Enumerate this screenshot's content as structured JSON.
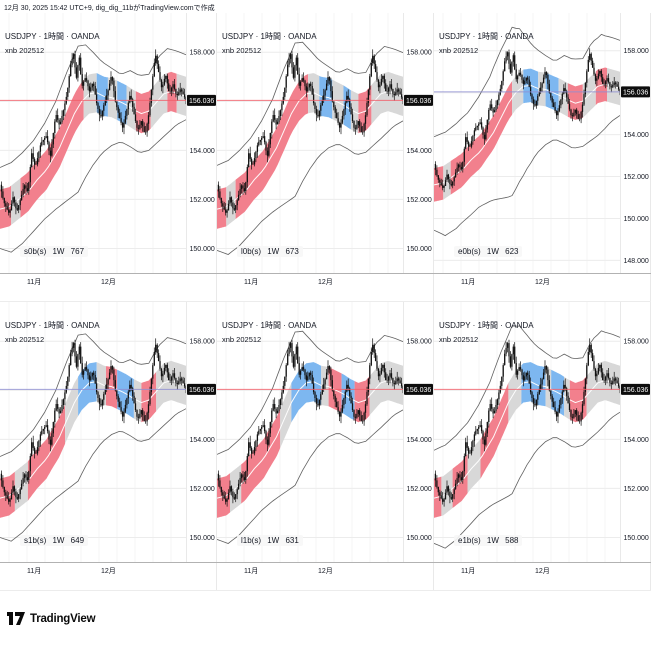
{
  "header": {
    "caption": "12月 30, 2025 15:42 UTC+9, dig_dig_11bがTradingView.comで作成"
  },
  "footer": {
    "brand": "TradingView"
  },
  "colors": {
    "background": "#ffffff",
    "text": "#131722",
    "grid_minor": "#f4f4f4",
    "grid_major": "#ececec",
    "axis_line": "#b2b2b2",
    "separator": "#e9e9e9",
    "candle": "#111111",
    "envelope": "#454545",
    "band_red": "#f2808d",
    "band_blue": "#7db7f0",
    "band_gray": "#d8d8d8",
    "band_center_line": "#ffffff",
    "price_line_red": "#f25f6a",
    "price_line_purple": "#8f8fd2",
    "badge_bg": "#0d0d0d",
    "badge_text": "#ffffff"
  },
  "chart_data": {
    "type": "candlestick-multi-panel",
    "symbol": "USDJPY · 1時間 · OANDA",
    "indicator": "xnb 202512",
    "last_price": "156.036",
    "x_ticks": [
      "11月",
      "12月"
    ],
    "band_halfwidth": 0.8,
    "price_path": [
      [
        0,
        152.6
      ],
      [
        0.02,
        151.9
      ],
      [
        0.05,
        151.4
      ],
      [
        0.07,
        152.1
      ],
      [
        0.09,
        151.5
      ],
      [
        0.11,
        152.0
      ],
      [
        0.13,
        152.6
      ],
      [
        0.15,
        152.3
      ],
      [
        0.17,
        153.9
      ],
      [
        0.19,
        153.3
      ],
      [
        0.22,
        154.3
      ],
      [
        0.25,
        154.6
      ],
      [
        0.27,
        153.7
      ],
      [
        0.3,
        155.5
      ],
      [
        0.32,
        155.0
      ],
      [
        0.34,
        155.6
      ],
      [
        0.36,
        156.3
      ],
      [
        0.38,
        157.5
      ],
      [
        0.395,
        157.95
      ],
      [
        0.41,
        156.9
      ],
      [
        0.425,
        157.9
      ],
      [
        0.44,
        156.6
      ],
      [
        0.46,
        157.0
      ],
      [
        0.48,
        156.4
      ],
      [
        0.5,
        156.8
      ],
      [
        0.52,
        155.9
      ],
      [
        0.54,
        155.3
      ],
      [
        0.56,
        155.9
      ],
      [
        0.58,
        156.4
      ],
      [
        0.6,
        157.1
      ],
      [
        0.62,
        156.0
      ],
      [
        0.64,
        155.4
      ],
      [
        0.66,
        154.9
      ],
      [
        0.68,
        155.6
      ],
      [
        0.7,
        156.3
      ],
      [
        0.72,
        155.5
      ],
      [
        0.74,
        154.8
      ],
      [
        0.76,
        155.2
      ],
      [
        0.78,
        154.6
      ],
      [
        0.8,
        155.5
      ],
      [
        0.82,
        156.9
      ],
      [
        0.835,
        157.95
      ],
      [
        0.85,
        157.3
      ],
      [
        0.87,
        156.5
      ],
      [
        0.89,
        157.1
      ],
      [
        0.91,
        156.3
      ],
      [
        0.93,
        156.7
      ],
      [
        0.95,
        156.2
      ],
      [
        0.97,
        156.5
      ],
      [
        1.0,
        156.05
      ]
    ],
    "band_center": [
      [
        0,
        151.6
      ],
      [
        0.05,
        151.7
      ],
      [
        0.1,
        152.0
      ],
      [
        0.15,
        152.3
      ],
      [
        0.2,
        152.8
      ],
      [
        0.25,
        153.2
      ],
      [
        0.28,
        153.6
      ],
      [
        0.32,
        154.1
      ],
      [
        0.36,
        154.8
      ],
      [
        0.4,
        155.5
      ],
      [
        0.44,
        156.0
      ],
      [
        0.48,
        156.3
      ],
      [
        0.52,
        156.35
      ],
      [
        0.56,
        156.2
      ],
      [
        0.6,
        156.15
      ],
      [
        0.64,
        156.0
      ],
      [
        0.68,
        155.85
      ],
      [
        0.72,
        155.65
      ],
      [
        0.76,
        155.5
      ],
      [
        0.8,
        155.6
      ],
      [
        0.84,
        155.95
      ],
      [
        0.88,
        156.3
      ],
      [
        0.92,
        156.4
      ],
      [
        0.96,
        156.3
      ],
      [
        1.0,
        156.2
      ]
    ],
    "envelope_upper": [
      [
        0,
        153.3
      ],
      [
        0.06,
        153.5
      ],
      [
        0.12,
        153.9
      ],
      [
        0.18,
        154.4
      ],
      [
        0.24,
        155.1
      ],
      [
        0.3,
        156.0
      ],
      [
        0.36,
        157.2
      ],
      [
        0.42,
        158.25
      ],
      [
        0.46,
        158.3
      ],
      [
        0.5,
        158.0
      ],
      [
        0.55,
        157.6
      ],
      [
        0.6,
        157.35
      ],
      [
        0.65,
        157.1
      ],
      [
        0.7,
        157.25
      ],
      [
        0.75,
        157.05
      ],
      [
        0.8,
        157.1
      ],
      [
        0.85,
        157.8
      ],
      [
        0.9,
        158.15
      ],
      [
        0.95,
        158.05
      ],
      [
        1.0,
        157.9
      ]
    ],
    "envelope_lower": [
      [
        0,
        150.0
      ],
      [
        0.06,
        149.85
      ],
      [
        0.12,
        150.2
      ],
      [
        0.18,
        150.7
      ],
      [
        0.24,
        151.2
      ],
      [
        0.3,
        151.6
      ],
      [
        0.36,
        151.95
      ],
      [
        0.42,
        152.3
      ],
      [
        0.46,
        152.9
      ],
      [
        0.5,
        153.4
      ],
      [
        0.55,
        153.9
      ],
      [
        0.6,
        154.2
      ],
      [
        0.65,
        154.35
      ],
      [
        0.7,
        154.15
      ],
      [
        0.75,
        153.9
      ],
      [
        0.8,
        154.0
      ],
      [
        0.85,
        154.35
      ],
      [
        0.9,
        154.7
      ],
      [
        0.95,
        155.05
      ],
      [
        1.0,
        155.25
      ]
    ],
    "charts": [
      {
        "id": "s0b",
        "label": "s0b(s) 1W 767",
        "ylim": [
          149.0,
          159.6
        ],
        "y_ticks": [
          158,
          154,
          152,
          150
        ],
        "grid_ticks": [
          158,
          156,
          154,
          152,
          150
        ],
        "env_scale": 1.0,
        "price_line": "red",
        "fills": [
          [
            0,
            0.06,
            "red"
          ],
          [
            0.06,
            0.11,
            "gray"
          ],
          [
            0.11,
            0.45,
            "red"
          ],
          [
            0.45,
            0.52,
            "gray"
          ],
          [
            0.52,
            0.58,
            "blue"
          ],
          [
            0.58,
            0.63,
            "gray"
          ],
          [
            0.63,
            0.68,
            "blue"
          ],
          [
            0.68,
            0.73,
            "gray"
          ],
          [
            0.73,
            0.81,
            "red"
          ],
          [
            0.81,
            0.9,
            "gray"
          ],
          [
            0.9,
            0.95,
            "red"
          ],
          [
            0.95,
            1,
            "gray"
          ]
        ]
      },
      {
        "id": "l0b",
        "label": "l0b(s) 1W 673",
        "ylim": [
          149.0,
          159.6
        ],
        "y_ticks": [
          158,
          154,
          152,
          150
        ],
        "grid_ticks": [
          158,
          156,
          154,
          152,
          150
        ],
        "env_scale": 1.05,
        "price_line": "red",
        "fills": [
          [
            0,
            0.05,
            "red"
          ],
          [
            0.05,
            0.1,
            "gray"
          ],
          [
            0.1,
            0.49,
            "red"
          ],
          [
            0.49,
            0.55,
            "gray"
          ],
          [
            0.55,
            0.62,
            "blue"
          ],
          [
            0.62,
            0.68,
            "gray"
          ],
          [
            0.68,
            0.72,
            "blue"
          ],
          [
            0.72,
            0.76,
            "gray"
          ],
          [
            0.76,
            0.83,
            "red"
          ],
          [
            0.83,
            1,
            "gray"
          ]
        ]
      },
      {
        "id": "e0b",
        "label": "e0b(s) 1W 623",
        "ylim": [
          147.4,
          159.8
        ],
        "y_ticks": [
          158,
          154,
          152,
          150,
          148
        ],
        "grid_ticks": [
          158,
          156,
          154,
          152,
          150,
          148
        ],
        "env_scale": 1.35,
        "price_line": "purple",
        "fills": [
          [
            0,
            0.05,
            "red"
          ],
          [
            0.05,
            0.09,
            "gray"
          ],
          [
            0.09,
            0.42,
            "red"
          ],
          [
            0.42,
            0.48,
            "gray"
          ],
          [
            0.48,
            0.56,
            "blue"
          ],
          [
            0.56,
            0.6,
            "gray"
          ],
          [
            0.6,
            0.67,
            "blue"
          ],
          [
            0.67,
            0.72,
            "gray"
          ],
          [
            0.72,
            0.8,
            "red"
          ],
          [
            0.8,
            0.87,
            "gray"
          ],
          [
            0.87,
            0.93,
            "red"
          ],
          [
            0.93,
            1,
            "gray"
          ]
        ]
      },
      {
        "id": "s1b",
        "label": "s1b(s) 1W 649",
        "ylim": [
          149.0,
          159.6
        ],
        "y_ticks": [
          158,
          154,
          152,
          150
        ],
        "grid_ticks": [
          158,
          156,
          154,
          152,
          150
        ],
        "env_scale": 1.0,
        "price_line": "purple",
        "fills": [
          [
            0,
            0.08,
            "red"
          ],
          [
            0.08,
            0.15,
            "gray"
          ],
          [
            0.15,
            0.35,
            "red"
          ],
          [
            0.35,
            0.42,
            "gray"
          ],
          [
            0.42,
            0.52,
            "blue"
          ],
          [
            0.52,
            0.57,
            "gray"
          ],
          [
            0.57,
            0.63,
            "red"
          ],
          [
            0.63,
            0.72,
            "blue"
          ],
          [
            0.72,
            0.76,
            "gray"
          ],
          [
            0.76,
            0.84,
            "red"
          ],
          [
            0.84,
            1,
            "gray"
          ]
        ]
      },
      {
        "id": "l1b",
        "label": "l1b(s) 1W 631",
        "ylim": [
          149.0,
          159.6
        ],
        "y_ticks": [
          158,
          154,
          152,
          150
        ],
        "grid_ticks": [
          158,
          156,
          154,
          152,
          150
        ],
        "env_scale": 1.05,
        "price_line": "red",
        "fills": [
          [
            0,
            0.07,
            "red"
          ],
          [
            0.07,
            0.13,
            "gray"
          ],
          [
            0.13,
            0.34,
            "red"
          ],
          [
            0.34,
            0.4,
            "gray"
          ],
          [
            0.4,
            0.56,
            "blue"
          ],
          [
            0.56,
            0.6,
            "gray"
          ],
          [
            0.6,
            0.67,
            "red"
          ],
          [
            0.67,
            0.74,
            "blue"
          ],
          [
            0.74,
            0.82,
            "red"
          ],
          [
            0.82,
            1,
            "gray"
          ]
        ]
      },
      {
        "id": "e1b",
        "label": "e1b(s) 1W 588",
        "ylim": [
          149.0,
          159.6
        ],
        "y_ticks": [
          158,
          154,
          152,
          150
        ],
        "grid_ticks": [
          158,
          156,
          154,
          152,
          150
        ],
        "env_scale": 1.15,
        "price_line": "red",
        "fills": [
          [
            0,
            0.04,
            "red"
          ],
          [
            0.04,
            0.1,
            "gray"
          ],
          [
            0.1,
            0.18,
            "red"
          ],
          [
            0.18,
            0.25,
            "gray"
          ],
          [
            0.25,
            0.4,
            "red"
          ],
          [
            0.4,
            0.47,
            "gray"
          ],
          [
            0.47,
            0.6,
            "blue"
          ],
          [
            0.6,
            0.63,
            "gray"
          ],
          [
            0.63,
            0.7,
            "blue"
          ],
          [
            0.7,
            0.73,
            "gray"
          ],
          [
            0.73,
            0.82,
            "red"
          ],
          [
            0.82,
            1,
            "gray"
          ]
        ]
      }
    ]
  }
}
